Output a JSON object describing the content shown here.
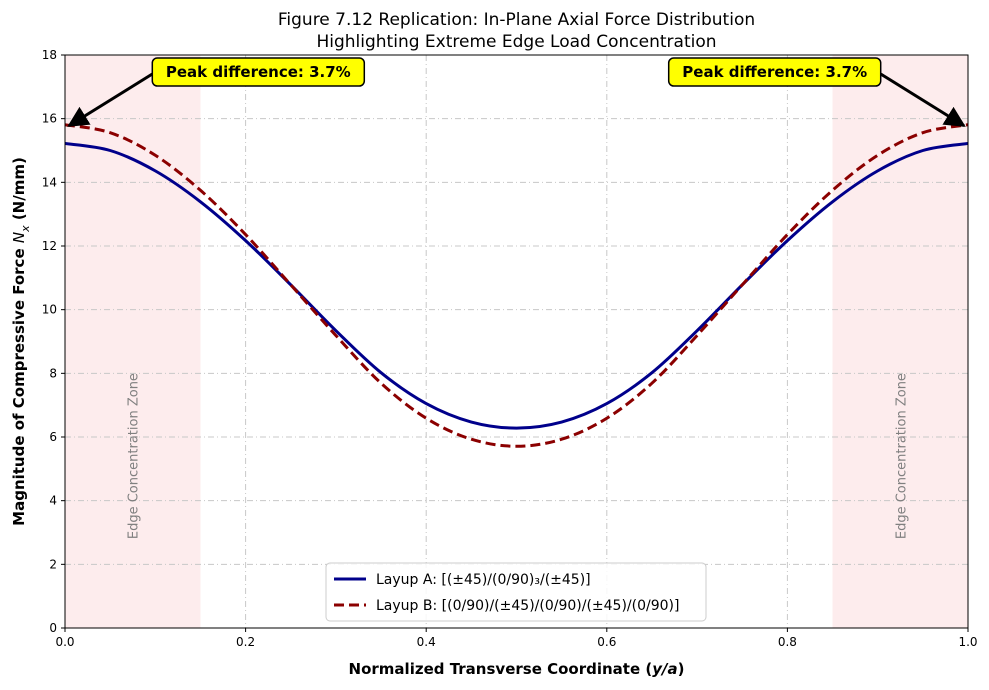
{
  "chart_data": {
    "type": "line",
    "title_line1": "Figure 7.12 Replication: In-Plane Axial Force Distribution",
    "title_line2": "Highlighting Extreme Edge Load Concentration",
    "xlabel_prefix": "Normalized Transverse Coordinate (",
    "xlabel_var": "y/a",
    "xlabel_suffix": ")",
    "ylabel_prefix": "Magnitude of Compressive Force ",
    "ylabel_var": "N",
    "ylabel_sub": "x",
    "ylabel_suffix": " (N/mm)",
    "xlim": [
      0.0,
      1.0
    ],
    "ylim": [
      0,
      18
    ],
    "xticks": [
      0.0,
      0.2,
      0.4,
      0.6,
      0.8,
      1.0
    ],
    "xtick_labels": [
      "0.0",
      "0.2",
      "0.4",
      "0.6",
      "0.8",
      "1.0"
    ],
    "yticks": [
      0,
      2,
      4,
      6,
      8,
      10,
      12,
      14,
      16,
      18
    ],
    "ytick_labels": [
      "0",
      "2",
      "4",
      "6",
      "8",
      "10",
      "12",
      "14",
      "16",
      "18"
    ],
    "grid": true,
    "series": [
      {
        "name": "Layup A: [(±45)/(0/90)₃/(±45)]",
        "color": "#00008b",
        "style": "solid",
        "x": [
          0.0,
          0.05,
          0.1,
          0.15,
          0.2,
          0.25,
          0.3,
          0.35,
          0.4,
          0.45,
          0.5,
          0.55,
          0.6,
          0.65,
          0.7,
          0.75,
          0.8,
          0.85,
          0.9,
          0.95,
          1.0
        ],
        "y": [
          15.22,
          15.0,
          14.36,
          13.39,
          12.17,
          10.78,
          9.34,
          8.02,
          7.05,
          6.47,
          6.28,
          6.47,
          7.05,
          8.02,
          9.34,
          10.78,
          12.17,
          13.39,
          14.36,
          15.0,
          15.22
        ]
      },
      {
        "name": "Layup B: [(0/90)/(±45)/(0/90)/(±45)/(0/90)]",
        "color": "#8b0000",
        "style": "dashed",
        "x": [
          0.0,
          0.05,
          0.1,
          0.15,
          0.2,
          0.25,
          0.3,
          0.35,
          0.4,
          0.45,
          0.5,
          0.55,
          0.6,
          0.65,
          0.7,
          0.75,
          0.8,
          0.85,
          0.9,
          0.95,
          1.0
        ],
        "y": [
          15.81,
          15.56,
          14.85,
          13.75,
          12.36,
          10.78,
          9.19,
          7.69,
          6.59,
          5.93,
          5.71,
          5.93,
          6.59,
          7.69,
          9.19,
          10.78,
          12.36,
          13.75,
          14.85,
          15.56,
          15.81
        ]
      }
    ],
    "shaded_zones": [
      {
        "x_range": [
          0.0,
          0.15
        ],
        "label": "Edge Concentration Zone",
        "color": "#fdeced"
      },
      {
        "x_range": [
          0.85,
          1.0
        ],
        "label": "Edge Concentration Zone",
        "color": "#fdeced"
      }
    ],
    "annotations": [
      {
        "text": "Peak difference: 3.7%",
        "point": [
          0.0,
          15.81
        ],
        "text_anchor_data": [
          0.1,
          17.8
        ],
        "position": "top-left"
      },
      {
        "text": "Peak difference: 3.7%",
        "point": [
          1.0,
          15.81
        ],
        "text_anchor_data": [
          0.9,
          17.8
        ],
        "position": "top-right"
      }
    ],
    "annotation_box_color": "#ffff00",
    "legend_position": "lower-center"
  }
}
